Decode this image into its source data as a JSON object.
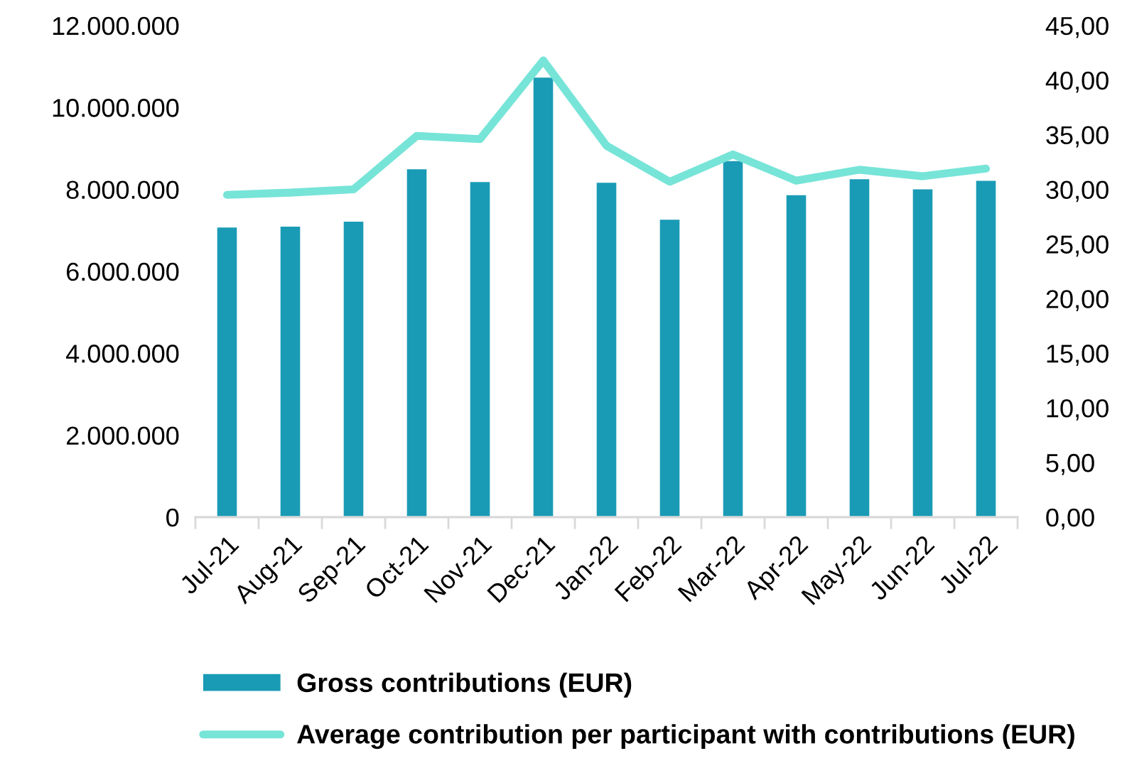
{
  "chart_data": {
    "type": "bar",
    "categories": [
      "Jul-21",
      "Aug-21",
      "Sep-21",
      "Oct-21",
      "Nov-21",
      "Dec-21",
      "Jan-22",
      "Feb-22",
      "Mar-22",
      "Apr-22",
      "May-22",
      "Jun-22",
      "Jul-22"
    ],
    "series": [
      {
        "name": "Gross contributions (EUR)",
        "color": "#1a9bb5",
        "values": [
          7070000,
          7090000,
          7210000,
          8490000,
          8180000,
          10730000,
          8160000,
          7260000,
          8690000,
          7860000,
          8250000,
          8000000,
          8210000
        ]
      },
      {
        "name": "Average contribution per participant with contributions (EUR)",
        "type": "line",
        "axis": "y2",
        "color": "#77e4d8",
        "values": [
          29.5,
          29.7,
          30.0,
          34.9,
          34.6,
          41.8,
          34.0,
          30.7,
          33.2,
          30.8,
          31.8,
          31.2,
          31.9
        ]
      }
    ],
    "ylim": [
      0,
      12000000
    ],
    "yticks": [
      0,
      {
        "value": 2000000,
        "label": "2.000.000"
      },
      {
        "value": 4000000,
        "label": "4.000.000"
      },
      {
        "value": 6000000,
        "label": "6.000.000"
      },
      {
        "value": 8000000,
        "label": "8.000.000"
      },
      {
        "value": 10000000,
        "label": "10.000.000"
      },
      {
        "value": 12000000,
        "label": "12.000.000"
      }
    ],
    "y2lim": [
      0,
      45
    ],
    "y2ticks": [
      {
        "value": 0,
        "label": "0,00"
      },
      {
        "value": 5,
        "label": "5,00"
      },
      {
        "value": 10,
        "label": "10,00"
      },
      {
        "value": 15,
        "label": "15,00"
      },
      {
        "value": 20,
        "label": "20,00"
      },
      {
        "value": 25,
        "label": "25,00"
      },
      {
        "value": 30,
        "label": "30,00"
      },
      {
        "value": 35,
        "label": "35,00"
      },
      {
        "value": 40,
        "label": "40,00"
      },
      {
        "value": 45,
        "label": "45,00"
      }
    ],
    "legend": "bottom",
    "grid": false
  }
}
